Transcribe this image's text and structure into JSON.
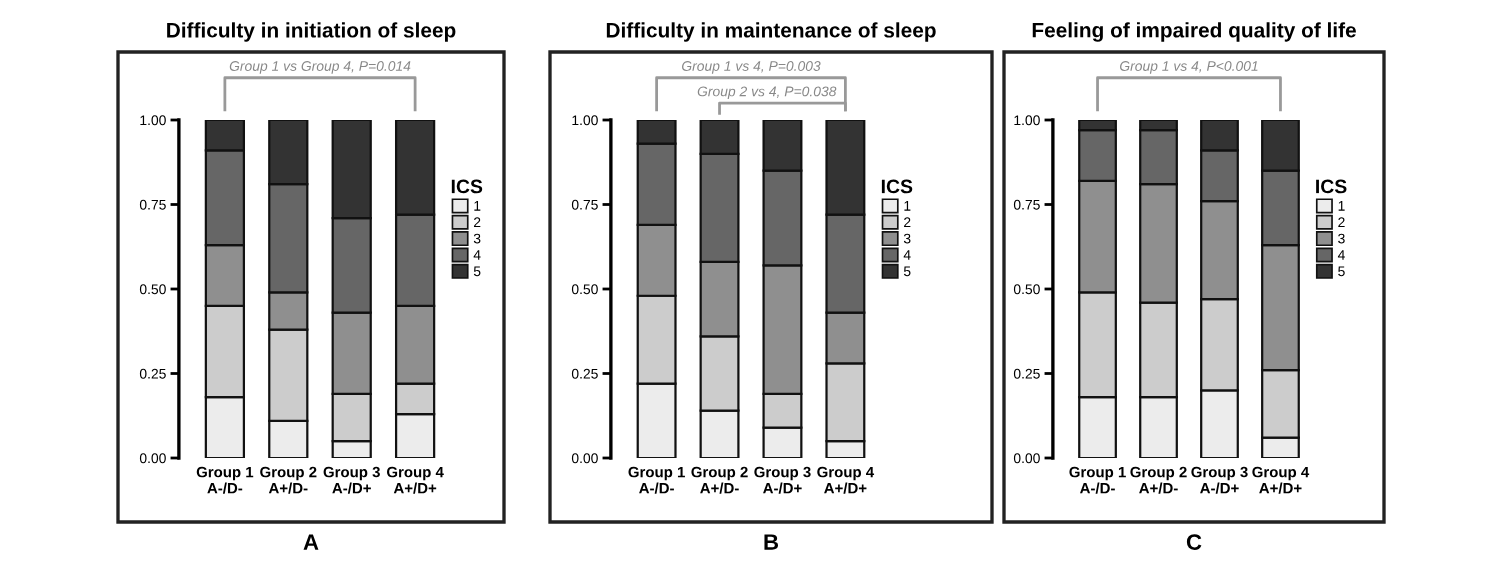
{
  "chart_data": [
    {
      "type": "bar",
      "stacked": true,
      "title": "Difficulty in initiation of sleep",
      "legend_title": "ICS",
      "legend": "right",
      "grid": false,
      "categories": [
        "Group 1\nA-/D-",
        "Group 2\nA+/D-",
        "Group 3\nA-/D+",
        "Group 4\nA+/D+"
      ],
      "ylim": [
        0,
        1
      ],
      "yticks": [
        {
          "value": 0,
          "label": "0.00"
        },
        {
          "value": 0.25,
          "label": "0.25"
        },
        {
          "value": 0.5,
          "label": "0.50"
        },
        {
          "value": 0.75,
          "label": "0.75"
        },
        {
          "value": 1,
          "label": "1.00"
        }
      ],
      "series": [
        {
          "name": "1",
          "color": "#ececec",
          "values": [
            0.18,
            0.11,
            0.05,
            0.13
          ]
        },
        {
          "name": "2",
          "color": "#cccccc",
          "values": [
            0.27,
            0.27,
            0.14,
            0.09
          ]
        },
        {
          "name": "3",
          "color": "#8f8f8f",
          "values": [
            0.18,
            0.11,
            0.24,
            0.23
          ]
        },
        {
          "name": "4",
          "color": "#666666",
          "values": [
            0.28,
            0.32,
            0.28,
            0.27
          ]
        },
        {
          "name": "5",
          "color": "#333333",
          "values": [
            0.09,
            0.19,
            0.29,
            0.28
          ]
        }
      ],
      "annotations": [
        "Group 1 vs Group 4, P=0.014",
        "A"
      ]
    },
    {
      "type": "bar",
      "stacked": true,
      "title": "Difficulty in maintenance of sleep",
      "legend_title": "ICS",
      "legend": "right",
      "grid": false,
      "categories": [
        "Group 1\nA-/D-",
        "Group 2\nA+/D-",
        "Group 3\nA-/D+",
        "Group 4\nA+/D+"
      ],
      "ylim": [
        0,
        1
      ],
      "yticks": [
        {
          "value": 0,
          "label": "0.00"
        },
        {
          "value": 0.25,
          "label": "0.25"
        },
        {
          "value": 0.5,
          "label": "0.50"
        },
        {
          "value": 0.75,
          "label": "0.75"
        },
        {
          "value": 1,
          "label": "1.00"
        }
      ],
      "series": [
        {
          "name": "1",
          "color": "#ececec",
          "values": [
            0.22,
            0.14,
            0.09,
            0.05
          ]
        },
        {
          "name": "2",
          "color": "#cccccc",
          "values": [
            0.26,
            0.22,
            0.1,
            0.23
          ]
        },
        {
          "name": "3",
          "color": "#8f8f8f",
          "values": [
            0.21,
            0.22,
            0.38,
            0.15
          ]
        },
        {
          "name": "4",
          "color": "#666666",
          "values": [
            0.24,
            0.32,
            0.28,
            0.29
          ]
        },
        {
          "name": "5",
          "color": "#333333",
          "values": [
            0.07,
            0.1,
            0.15,
            0.28
          ]
        }
      ],
      "annotations": [
        "Group 1 vs 4, P=0.003",
        "Group 2 vs 4, P=0.038",
        "B"
      ]
    },
    {
      "type": "bar",
      "stacked": true,
      "title": "Feeling of impaired quality of life",
      "legend_title": "ICS",
      "legend": "right",
      "grid": false,
      "categories": [
        "Group 1\nA-/D-",
        "Group 2\nA+/D-",
        "Group 3\nA-/D+",
        "Group 4\nA+/D+"
      ],
      "ylim": [
        0,
        1
      ],
      "yticks": [
        {
          "value": 0,
          "label": "0.00"
        },
        {
          "value": 0.25,
          "label": "0.25"
        },
        {
          "value": 0.5,
          "label": "0.50"
        },
        {
          "value": 0.75,
          "label": "0.75"
        },
        {
          "value": 1,
          "label": "1.00"
        }
      ],
      "series": [
        {
          "name": "1",
          "color": "#ececec",
          "values": [
            0.18,
            0.18,
            0.2,
            0.06
          ]
        },
        {
          "name": "2",
          "color": "#cccccc",
          "values": [
            0.31,
            0.28,
            0.27,
            0.2
          ]
        },
        {
          "name": "3",
          "color": "#8f8f8f",
          "values": [
            0.33,
            0.35,
            0.29,
            0.37
          ]
        },
        {
          "name": "4",
          "color": "#666666",
          "values": [
            0.15,
            0.16,
            0.15,
            0.22
          ]
        },
        {
          "name": "5",
          "color": "#333333",
          "values": [
            0.03,
            0.03,
            0.09,
            0.15
          ]
        }
      ],
      "annotations": [
        "Group 1 vs 4, P<0.001",
        "C"
      ]
    }
  ]
}
